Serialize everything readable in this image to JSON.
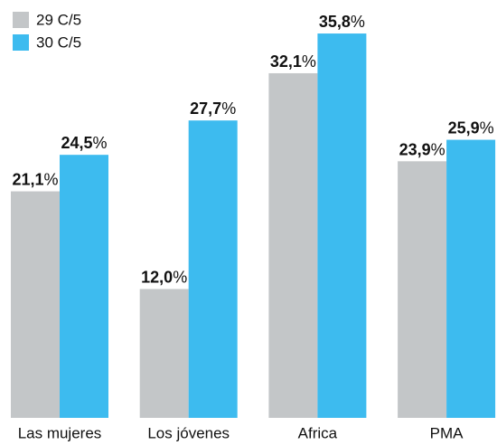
{
  "chart_data": {
    "type": "bar",
    "categories": [
      "Las mujeres",
      "Los jóvenes",
      "Africa",
      "PMA"
    ],
    "series": [
      {
        "name": "29 C/5",
        "color": "#c3c6c8",
        "values": [
          21.1,
          12.0,
          32.1,
          23.9
        ],
        "value_labels": [
          "21,1%",
          "12,0%",
          "32,1%",
          "23,9%"
        ]
      },
      {
        "name": "30 C/5",
        "color": "#3dbbef",
        "values": [
          24.5,
          27.7,
          35.8,
          25.9
        ],
        "value_labels": [
          "24,5%",
          "27,7%",
          "35,8%",
          "25,9%"
        ]
      }
    ],
    "legend": "upper left"
  }
}
